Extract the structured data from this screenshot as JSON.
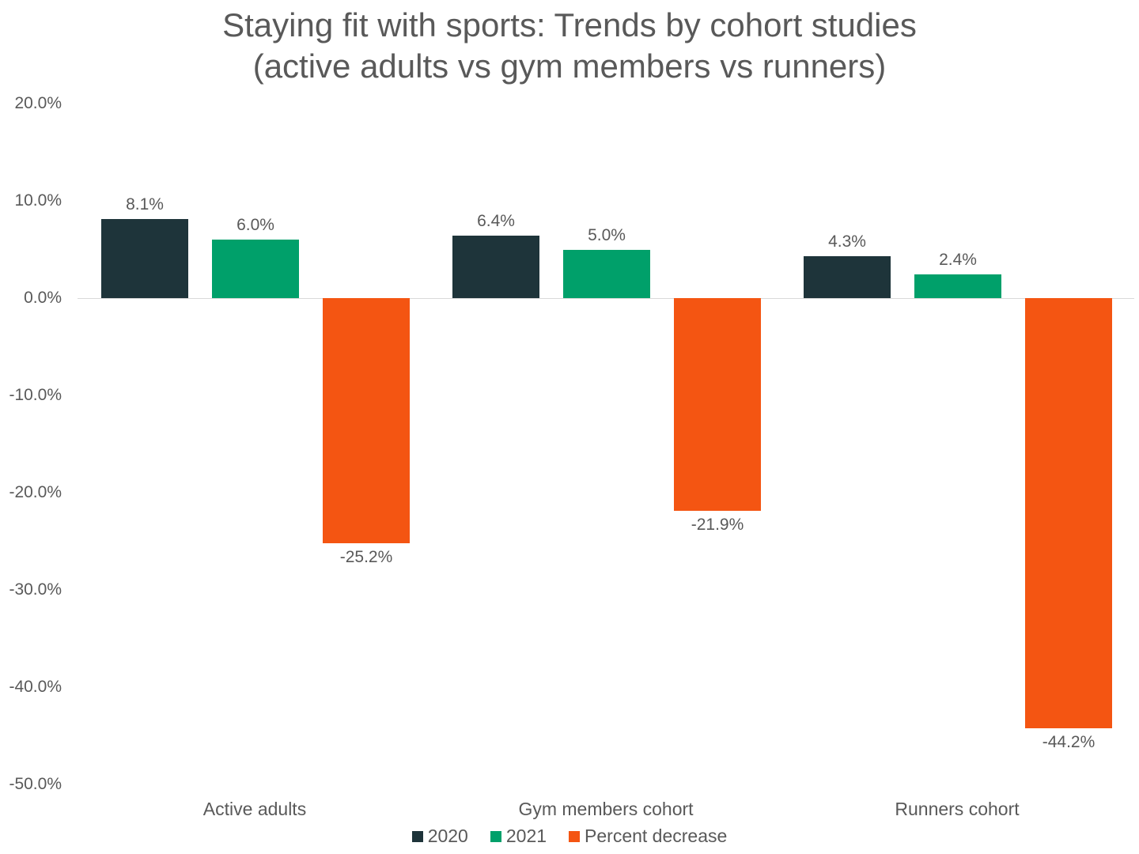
{
  "chart_data": {
    "type": "bar",
    "title": "Staying fit with sports: Trends by cohort studies (active adults vs gym members vs runners)",
    "title_lines": [
      "Staying fit with sports: Trends by cohort studies",
      "(active adults vs gym members vs runners)"
    ],
    "categories": [
      "Active adults",
      "Gym members cohort",
      "Runners cohort"
    ],
    "series": [
      {
        "name": "2020",
        "color": "#1e343a",
        "values": [
          8.1,
          6.4,
          4.3
        ],
        "labels": [
          "8.1%",
          "6.4%",
          "4.3%"
        ]
      },
      {
        "name": "2021",
        "color": "#00a06a",
        "values": [
          6.0,
          5.0,
          2.4
        ],
        "labels": [
          "6.0%",
          "5.0%",
          "2.4%"
        ]
      },
      {
        "name": "Percent decrease",
        "color": "#f45512",
        "values": [
          -25.2,
          -21.9,
          -44.2
        ],
        "labels": [
          "-25.2%",
          "-21.9%",
          "-44.2%"
        ]
      }
    ],
    "xlabel": "",
    "ylabel": "",
    "ylim": [
      -50,
      20
    ],
    "yticks": [
      "20.0%",
      "10.0%",
      "0.0%",
      "-10.0%",
      "-20.0%",
      "-30.0%",
      "-40.0%",
      "-50.0%"
    ],
    "grid": false,
    "legend_position": "bottom"
  }
}
